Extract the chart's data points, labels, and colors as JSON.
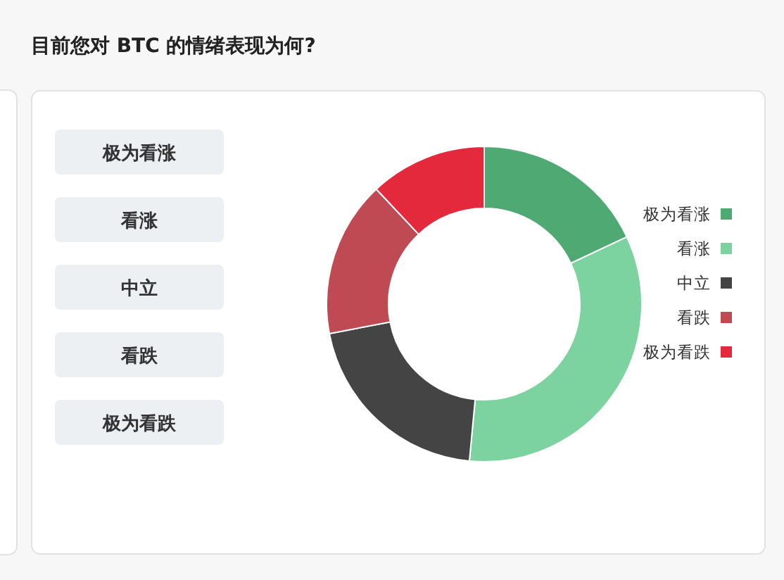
{
  "chart_data": {
    "type": "donut",
    "title": "目前您对 BTC 的情绪表现为何?",
    "categories": [
      "极为看涨",
      "看涨",
      "中立",
      "看跌",
      "极为看跌"
    ],
    "values": [
      18,
      33.5,
      20.5,
      16,
      12
    ],
    "colors": [
      "#4fa973",
      "#7dd3a0",
      "#444444",
      "#c04a53",
      "#e3293b"
    ],
    "legend": "right"
  }
}
